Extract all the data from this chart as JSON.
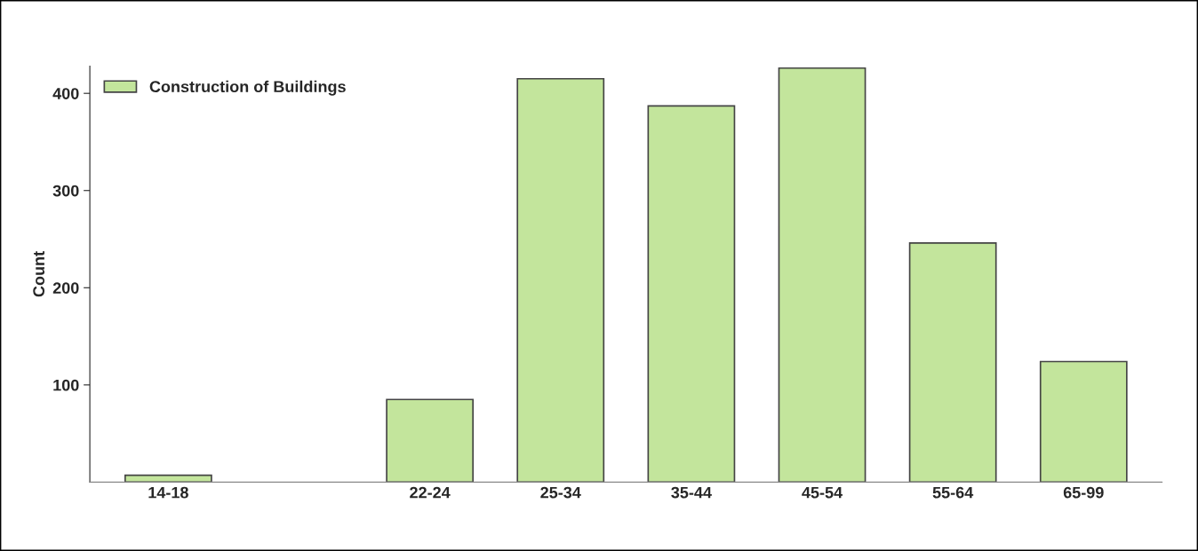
{
  "chart_data": {
    "type": "bar",
    "ylabel": "Count",
    "categories": [
      "14-18",
      null,
      "22-24",
      "25-34",
      "35-44",
      "45-54",
      "55-64",
      "65-99"
    ],
    "series": [
      {
        "name": "Construction of Buildings",
        "color": "#c3e59c",
        "values": [
          7,
          null,
          85,
          415,
          387,
          426,
          246,
          124
        ]
      }
    ],
    "ylim": [
      0,
      428
    ],
    "yticks": [
      100,
      200,
      300,
      400
    ],
    "grid": false,
    "legend": "top left"
  }
}
